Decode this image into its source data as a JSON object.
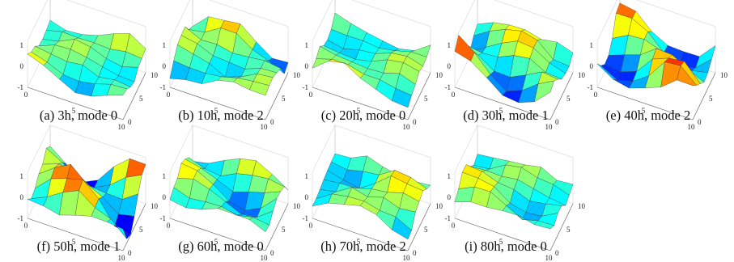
{
  "colormap": [
    "#00008f",
    "#0000ff",
    "#0080ff",
    "#00ffff",
    "#80ff80",
    "#ffff00",
    "#ff8000",
    "#ff0000",
    "#800000"
  ],
  "chart_data": [
    {
      "type": "surface",
      "caption": "(a) 3h, mode 0",
      "xlim": [
        0,
        10
      ],
      "ylim": [
        0,
        10
      ],
      "zlim": [
        -1,
        1
      ],
      "xticks": [
        "0",
        "5",
        "10"
      ],
      "yticks": [
        "0",
        "5",
        "10"
      ],
      "zticks": [
        "-1",
        "0",
        "1"
      ],
      "grid_size": 6,
      "z_scale": 0.8,
      "seed": 3
    },
    {
      "type": "surface",
      "caption": "(b) 10h, mode 2",
      "xlim": [
        0,
        10
      ],
      "ylim": [
        0,
        10
      ],
      "zlim": [
        -1,
        1
      ],
      "xticks": [
        "0",
        "5",
        "10"
      ],
      "yticks": [
        "0",
        "5",
        "10"
      ],
      "zticks": [
        "-1",
        "0",
        "1"
      ],
      "grid_size": 6,
      "z_scale": 1.0,
      "seed": 10
    },
    {
      "type": "surface",
      "caption": "(c) 20h, mode 0",
      "xlim": [
        0,
        10
      ],
      "ylim": [
        0,
        10
      ],
      "zlim": [
        -1,
        1
      ],
      "xticks": [
        "0",
        "5",
        "10"
      ],
      "yticks": [
        "0",
        "5",
        "10"
      ],
      "zticks": [
        "-1",
        "0",
        "1"
      ],
      "grid_size": 6,
      "z_scale": 0.8,
      "seed": 20
    },
    {
      "type": "surface",
      "caption": "(d) 30h, mode 1",
      "xlim": [
        0,
        10
      ],
      "ylim": [
        0,
        10
      ],
      "zlim": [
        -1,
        1
      ],
      "xticks": [
        "0",
        "5",
        "10"
      ],
      "yticks": [
        "0",
        "5",
        "10"
      ],
      "zticks": [
        "-1",
        "0",
        "1"
      ],
      "grid_size": 6,
      "z_scale": 1.1,
      "seed": 30
    },
    {
      "type": "surface",
      "caption": "(e) 40h, mode 2",
      "xlim": [
        0,
        10
      ],
      "ylim": [
        0,
        10
      ],
      "zlim": [
        -1,
        1
      ],
      "xticks": [
        "0",
        "5",
        "10"
      ],
      "yticks": [
        "0",
        "5",
        "10"
      ],
      "zticks": [
        "-1",
        "0",
        "1"
      ],
      "grid_size": 6,
      "z_scale": 1.0,
      "seed": 40
    },
    {
      "type": "surface",
      "caption": "(f) 50h, mode 1",
      "xlim": [
        0,
        10
      ],
      "ylim": [
        0,
        10
      ],
      "zlim": [
        -1,
        1
      ],
      "xticks": [
        "0",
        "5",
        "10"
      ],
      "yticks": [
        "0",
        "5",
        "10"
      ],
      "zticks": [
        "-1",
        "0",
        "1"
      ],
      "grid_size": 6,
      "z_scale": 1.1,
      "seed": 50
    },
    {
      "type": "surface",
      "caption": "(g) 60h, mode 0",
      "xlim": [
        0,
        10
      ],
      "ylim": [
        0,
        10
      ],
      "zlim": [
        -1,
        1
      ],
      "xticks": [
        "0",
        "5",
        "10"
      ],
      "yticks": [
        "0",
        "5",
        "10"
      ],
      "zticks": [
        "-1",
        "0",
        "1"
      ],
      "grid_size": 6,
      "z_scale": 0.8,
      "seed": 60
    },
    {
      "type": "surface",
      "caption": "(h) 70h, mode 2",
      "xlim": [
        0,
        10
      ],
      "ylim": [
        0,
        10
      ],
      "zlim": [
        -1,
        1
      ],
      "xticks": [
        "0",
        "5",
        "10"
      ],
      "yticks": [
        "0",
        "5",
        "10"
      ],
      "zticks": [
        "-1",
        "0",
        "1"
      ],
      "grid_size": 6,
      "z_scale": 1.0,
      "seed": 70
    },
    {
      "type": "surface",
      "caption": "(i) 80h, mode 0",
      "xlim": [
        0,
        10
      ],
      "ylim": [
        0,
        10
      ],
      "zlim": [
        -1,
        1
      ],
      "xticks": [
        "0",
        "5",
        "10"
      ],
      "yticks": [
        "0",
        "5",
        "10"
      ],
      "zticks": [
        "-1",
        "0",
        "1"
      ],
      "grid_size": 6,
      "z_scale": 0.8,
      "seed": 80
    }
  ]
}
